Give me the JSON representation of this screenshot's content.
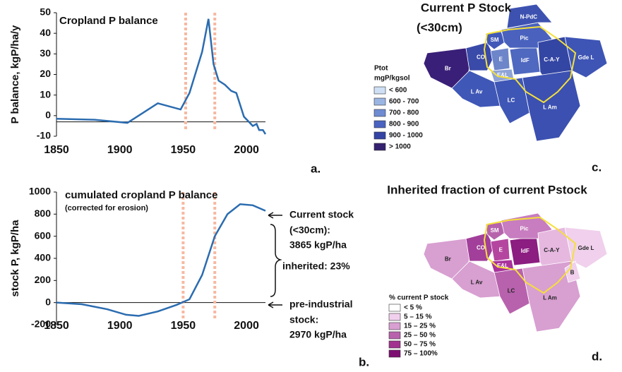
{
  "chart_data": [
    {
      "type": "line",
      "title": "Cropland P balance",
      "ylabel": "P balance, kgP/ha/y",
      "panel": "a.",
      "x": [
        1850,
        1880,
        1906,
        1930,
        1948,
        1955,
        1965,
        1970,
        1974,
        1978,
        1983,
        1988,
        1992,
        1998,
        2005,
        2008,
        2010,
        2013,
        2015
      ],
      "series": [
        {
          "name": "Cropland P balance",
          "color": "#2b6cb0",
          "values": [
            -1.5,
            -2,
            -3.5,
            6,
            3,
            11,
            31,
            47,
            25,
            17,
            15,
            12,
            11,
            -0.5,
            -5,
            -4,
            -7,
            -7,
            -9
          ]
        }
      ],
      "xlim": [
        1850,
        2015
      ],
      "xticks": [
        1850,
        1900,
        1950,
        2000
      ],
      "ylim": [
        -10,
        50
      ],
      "yticks": [
        -10,
        0,
        10,
        20,
        30,
        40,
        50
      ],
      "hline": -3,
      "vlines": [
        1952,
        1975
      ],
      "vline_color": "#f6b9a2"
    },
    {
      "type": "line",
      "title": "cumulated cropland P balance",
      "subtitle": "(corrected for erosion)",
      "ylabel": "stock P, kgP/ha",
      "panel": "b.",
      "x": [
        1850,
        1870,
        1890,
        1905,
        1915,
        1930,
        1945,
        1955,
        1965,
        1975,
        1985,
        1995,
        2005,
        2015
      ],
      "series": [
        {
          "name": "cumulated cropland P balance",
          "color": "#2b6cb0",
          "values": [
            0,
            -15,
            -60,
            -110,
            -120,
            -80,
            -20,
            30,
            250,
            600,
            800,
            890,
            880,
            830
          ]
        }
      ],
      "xlim": [
        1850,
        2015
      ],
      "xticks": [
        1850,
        1900,
        1950,
        2000
      ],
      "ylim": [
        -200,
        1000
      ],
      "yticks": [
        -200,
        0,
        200,
        400,
        600,
        800,
        1000
      ],
      "hline": 0,
      "vlines": [
        1950,
        1975
      ],
      "vline_color": "#f6b9a2",
      "annotations": [
        "Current stock",
        "(<30cm):",
        "3865 kgP/ha",
        "inherited: 23%",
        "pre-industrial",
        "stock:",
        "2970 kgP/ha"
      ]
    }
  ],
  "maps": [
    {
      "title": "Current P Stock",
      "subtitle": "(<30cm)",
      "legend_title": "Ptot",
      "legend_subtitle": "mgP/kgsol",
      "panel": "c.",
      "legend": [
        {
          "label": "< 600",
          "color": "#cfe0f5"
        },
        {
          "label": "600 - 700",
          "color": "#9bb5e3"
        },
        {
          "label": "700 - 800",
          "color": "#6f8bd2"
        },
        {
          "label": "800 - 900",
          "color": "#4a63c0"
        },
        {
          "label": "900 - 1000",
          "color": "#3444a4"
        },
        {
          "label": "> 1000",
          "color": "#34216f"
        }
      ],
      "regions": [
        {
          "label": "Br",
          "color": "#3a1f78"
        },
        {
          "label": "CO",
          "color": "#3a4aa8"
        },
        {
          "label": "SM",
          "color": "#4258b8"
        },
        {
          "label": "E",
          "color": "#6d85c9"
        },
        {
          "label": "E&L",
          "color": "#8ea3d6"
        },
        {
          "label": "IdF",
          "color": "#4f68c0"
        },
        {
          "label": "Pic",
          "color": "#4a62bd"
        },
        {
          "label": "C-A-Y",
          "color": "#3446a4"
        },
        {
          "label": "Gde L",
          "color": "#3e55b5"
        },
        {
          "label": "L Av",
          "color": "#3f57b6"
        },
        {
          "label": "LC",
          "color": "#3e56b5"
        },
        {
          "label": "L Am",
          "color": "#3b50b0"
        },
        {
          "label": "N-PdC",
          "color": "#3d52b0"
        }
      ]
    },
    {
      "title": "Inherited fraction of current Pstock",
      "legend_title": "% current P stock",
      "panel": "d.",
      "legend": [
        {
          "label": "< 5 %",
          "color": "#ffffff"
        },
        {
          "label": "5 – 15 %",
          "color": "#f0d0ec"
        },
        {
          "label": "15 – 25 %",
          "color": "#d89fd1"
        },
        {
          "label": "25 – 50 %",
          "color": "#b862ad"
        },
        {
          "label": "50 – 75 %",
          "color": "#a2328f"
        },
        {
          "label": "75 – 100%",
          "color": "#7d0f72"
        }
      ],
      "regions": [
        {
          "label": "Br",
          "color": "#d89fd1"
        },
        {
          "label": "CO",
          "color": "#a23f9a"
        },
        {
          "label": "SM",
          "color": "#b663ac"
        },
        {
          "label": "E",
          "color": "#b5469f"
        },
        {
          "label": "E&L",
          "color": "#a9329c"
        },
        {
          "label": "IdF",
          "color": "#8c1d81"
        },
        {
          "label": "Pic",
          "color": "#c77dbf"
        },
        {
          "label": "C-A-Y",
          "color": "#e6b8e0"
        },
        {
          "label": "Gde L",
          "color": "#f0d0ec"
        },
        {
          "label": "L Av",
          "color": "#d89fd1"
        },
        {
          "label": "LC",
          "color": "#b862ad"
        },
        {
          "label": "L Am",
          "color": "#d89fd1"
        },
        {
          "label": "B",
          "color": "#f0d0ec"
        }
      ]
    }
  ]
}
